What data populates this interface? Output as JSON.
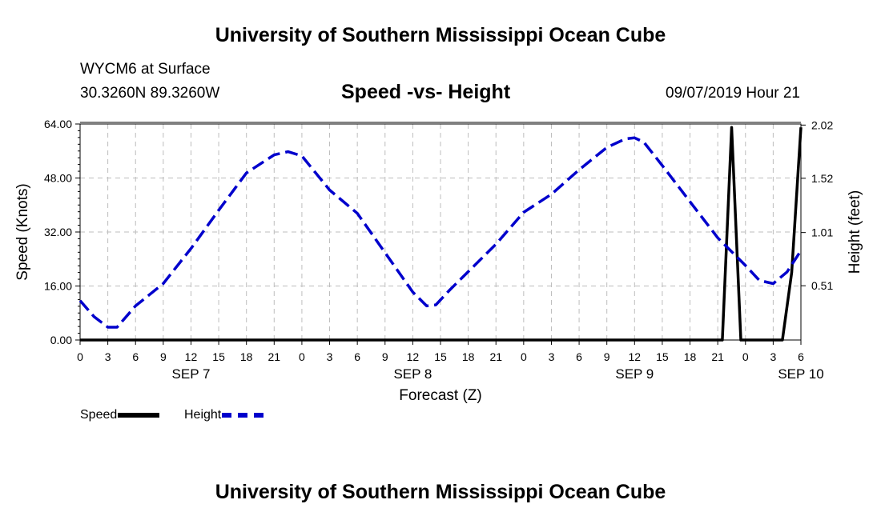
{
  "header": {
    "title": "University of Southern Mississippi Ocean Cube"
  },
  "info": {
    "station": "WYCM6 at Surface",
    "coords": "30.3260N 89.3260W",
    "plot_title": "Speed -vs- Height",
    "datetime": "09/07/2019 Hour 21"
  },
  "footer": {
    "title": "University of Southern Mississippi Ocean Cube"
  },
  "chart_data": {
    "type": "line",
    "title": "Speed -vs- Height",
    "xlabel": "Forecast (Z)",
    "ylabel_left": "Speed (Knots)",
    "ylabel_right": "Height (feet)",
    "x_hour_ticks": [
      "0",
      "3",
      "6",
      "9",
      "12",
      "15",
      "18",
      "21",
      "0",
      "3",
      "6",
      "9",
      "12",
      "15",
      "18",
      "21",
      "0",
      "3",
      "6",
      "9",
      "12",
      "15",
      "18",
      "21",
      "0",
      "3",
      "6"
    ],
    "x_day_labels": [
      {
        "label": "SEP 7",
        "hour": 12
      },
      {
        "label": "SEP 8",
        "hour": 36
      },
      {
        "label": "SEP 9",
        "hour": 60
      },
      {
        "label": "SEP 10",
        "hour": 78
      }
    ],
    "xlim": [
      0,
      78
    ],
    "y_left_ticks": [
      "0.00",
      "16.00",
      "32.00",
      "48.00",
      "64.00"
    ],
    "y_left_lim": [
      0,
      64
    ],
    "y_right_ticks": [
      "0.51",
      "1.01",
      "1.52",
      "2.02"
    ],
    "y_right_lim": [
      0,
      2.03
    ],
    "grid": true,
    "legend_position": "bottom-left",
    "series": [
      {
        "name": "Speed",
        "axis": "left",
        "color": "#000000",
        "style": "solid",
        "points": [
          [
            0,
            0
          ],
          [
            68,
            0
          ],
          [
            69.5,
            0
          ],
          [
            70.5,
            63
          ],
          [
            71.5,
            0
          ],
          [
            73.5,
            0
          ],
          [
            76,
            0
          ],
          [
            77,
            20
          ],
          [
            78,
            63
          ]
        ]
      },
      {
        "name": "Height",
        "axis": "right",
        "color": "#0000cc",
        "style": "dashed",
        "points": [
          [
            0,
            0.37
          ],
          [
            1.5,
            0.22
          ],
          [
            3,
            0.12
          ],
          [
            4,
            0.12
          ],
          [
            6,
            0.32
          ],
          [
            9,
            0.53
          ],
          [
            12,
            0.86
          ],
          [
            15,
            1.22
          ],
          [
            18,
            1.57
          ],
          [
            21,
            1.74
          ],
          [
            22.5,
            1.77
          ],
          [
            24,
            1.73
          ],
          [
            27,
            1.41
          ],
          [
            30,
            1.19
          ],
          [
            33,
            0.82
          ],
          [
            36,
            0.45
          ],
          [
            37.5,
            0.32
          ],
          [
            38.5,
            0.33
          ],
          [
            40,
            0.47
          ],
          [
            45,
            0.9
          ],
          [
            48,
            1.2
          ],
          [
            51,
            1.37
          ],
          [
            54,
            1.6
          ],
          [
            57,
            1.81
          ],
          [
            59,
            1.89
          ],
          [
            60,
            1.9
          ],
          [
            61,
            1.86
          ],
          [
            63,
            1.64
          ],
          [
            66,
            1.3
          ],
          [
            69,
            0.96
          ],
          [
            72,
            0.7
          ],
          [
            73.5,
            0.56
          ],
          [
            75,
            0.53
          ],
          [
            76.5,
            0.64
          ],
          [
            78,
            0.84
          ]
        ]
      }
    ]
  }
}
